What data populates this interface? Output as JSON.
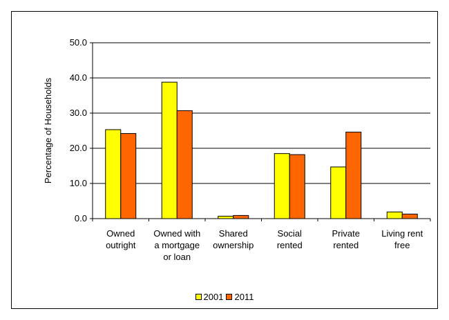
{
  "chart_data": {
    "type": "bar",
    "title": "",
    "xlabel": "",
    "ylabel": "Percentage of Households",
    "ylim": [
      0,
      50
    ],
    "yticks": [
      "0.0",
      "10.0",
      "20.0",
      "30.0",
      "40.0",
      "50.0"
    ],
    "grid": true,
    "legend_position": "bottom",
    "categories": [
      [
        "Owned",
        "outright"
      ],
      [
        "Owned with",
        "a mortgage",
        "or loan"
      ],
      [
        "Shared",
        "ownership"
      ],
      [
        "Social",
        "rented"
      ],
      [
        "Private",
        "rented"
      ],
      [
        "Living rent",
        "free"
      ]
    ],
    "series": [
      {
        "name": "2001",
        "color": "#ffff00",
        "values": [
          25.3,
          38.8,
          0.7,
          18.5,
          14.7,
          1.9
        ]
      },
      {
        "name": "2011",
        "color": "#ff6600",
        "values": [
          24.2,
          30.7,
          0.9,
          18.2,
          24.6,
          1.3
        ]
      }
    ]
  }
}
